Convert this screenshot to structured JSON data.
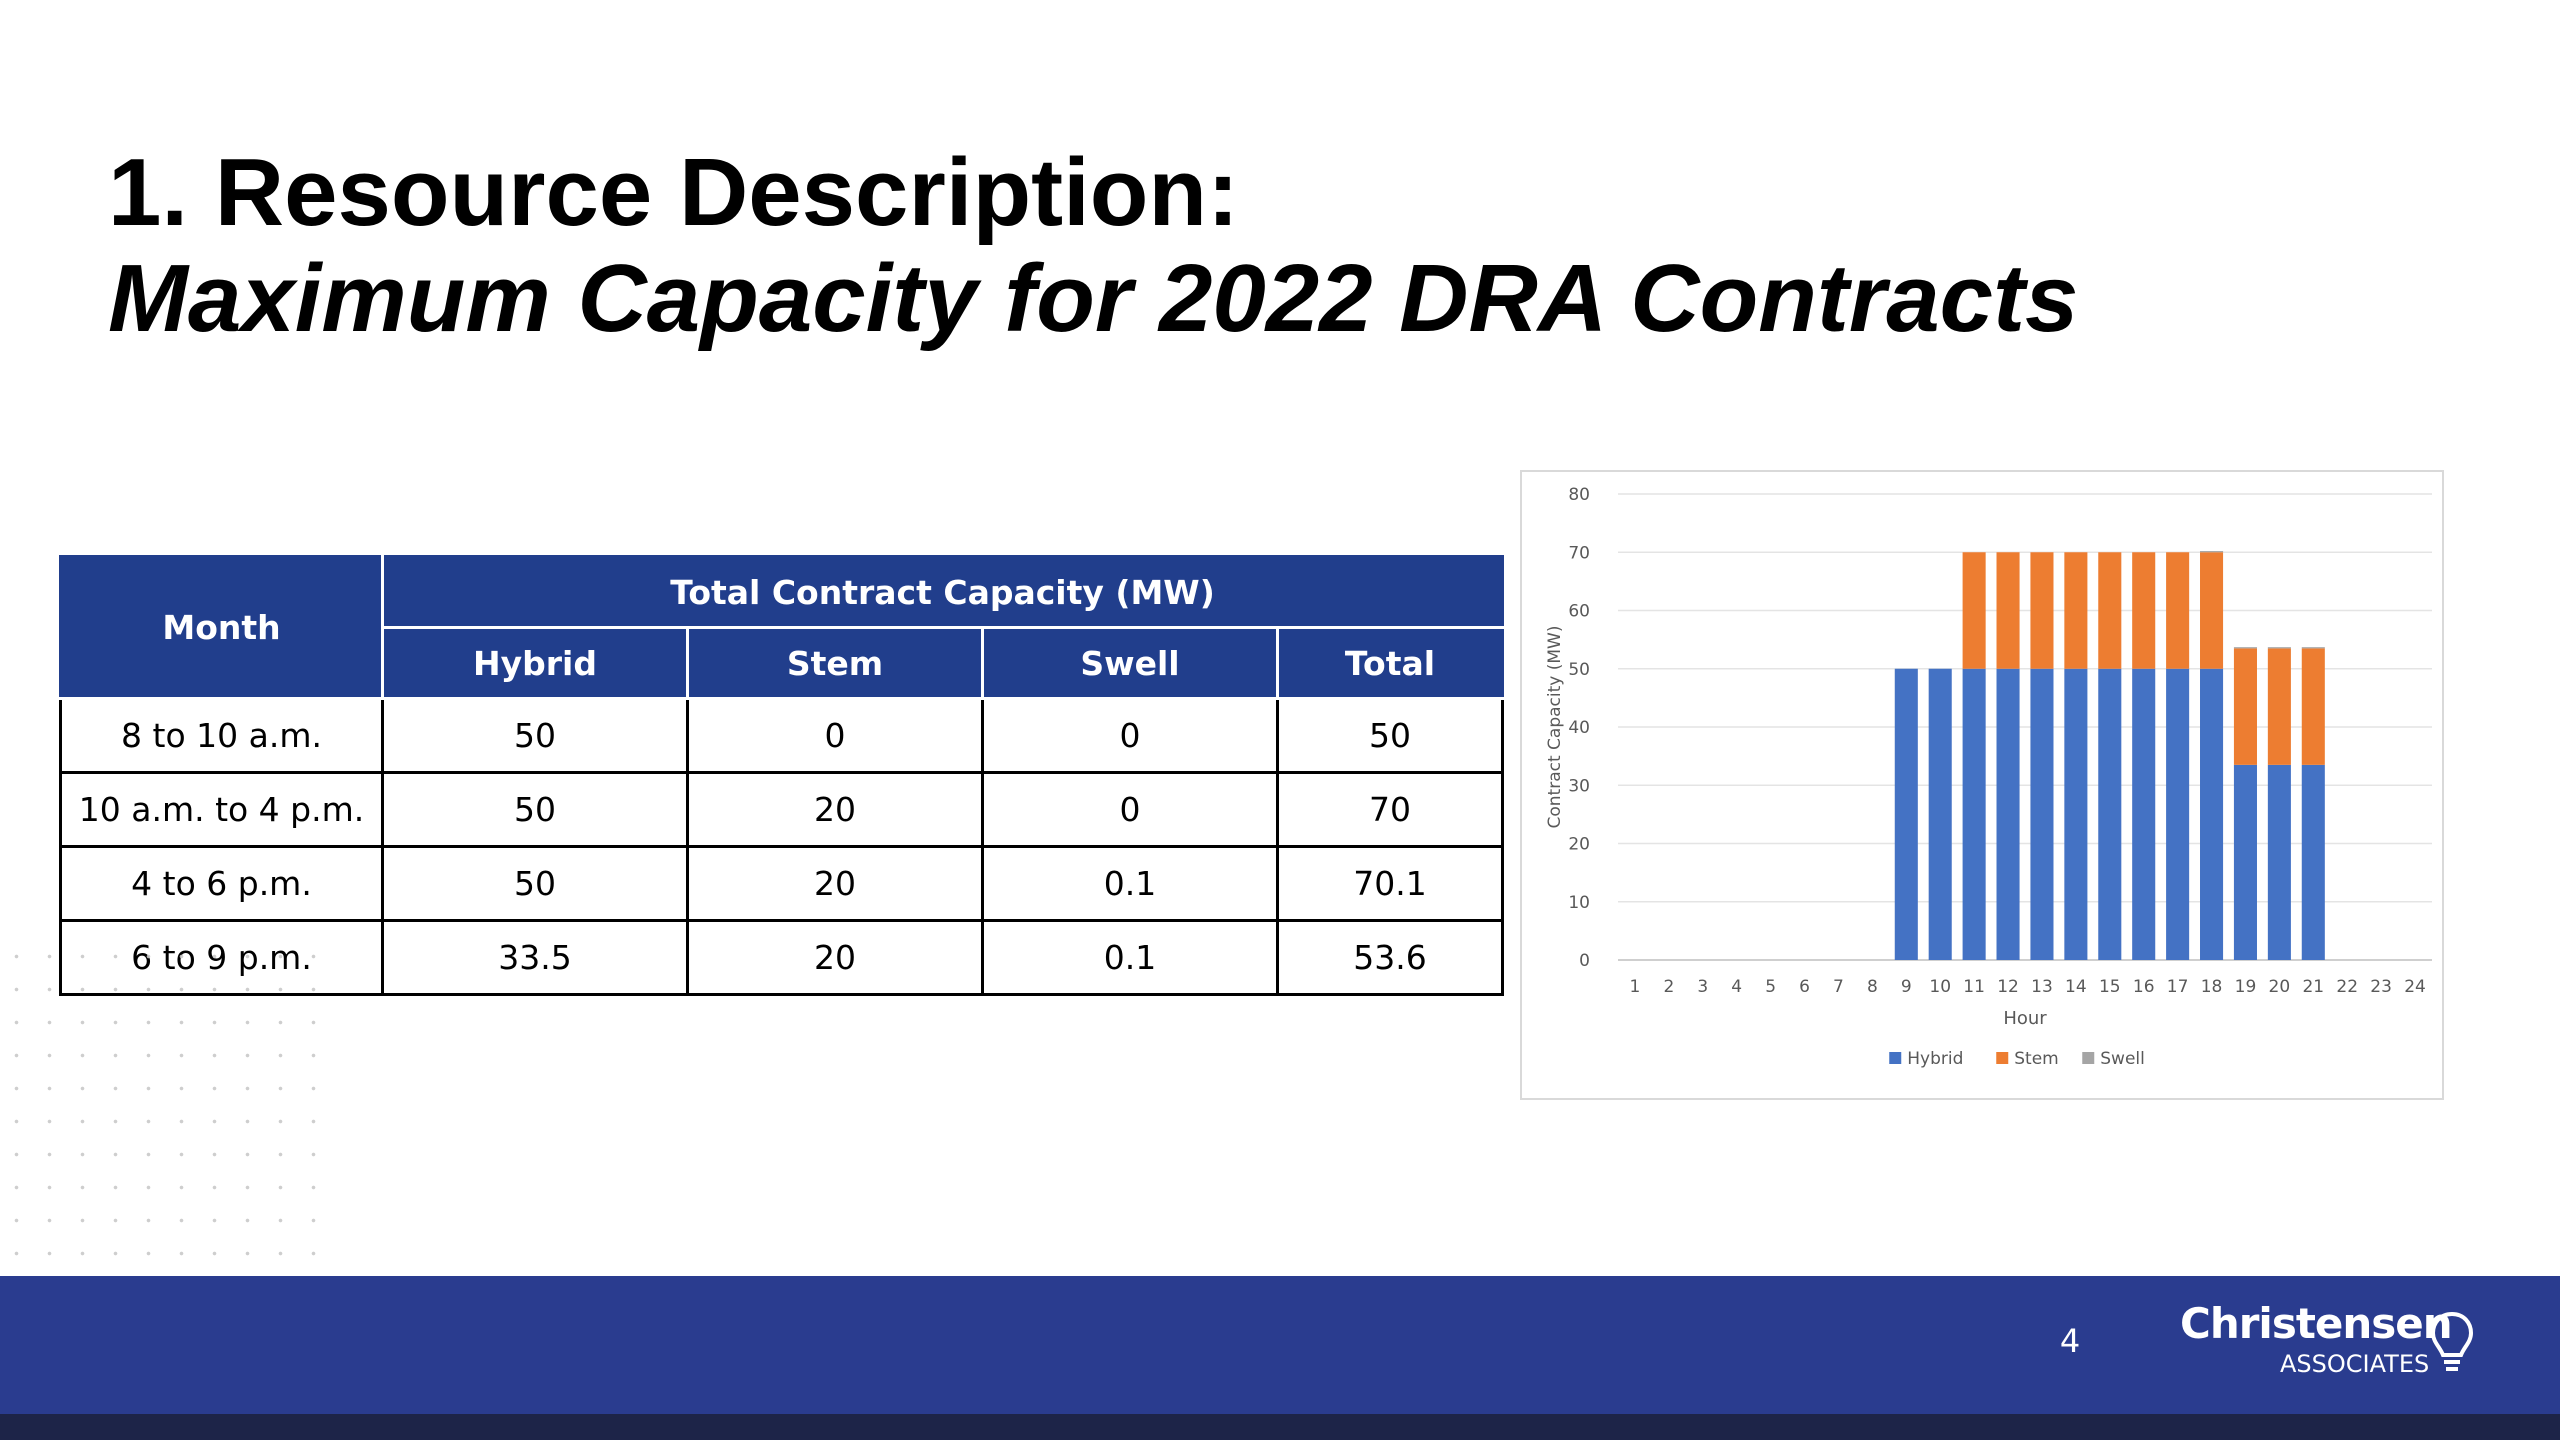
{
  "slide": {
    "title_line1": "1. Resource Description:",
    "title_line2": "Maximum Capacity for 2022 DRA Contracts",
    "page_number": "4"
  },
  "table": {
    "month_header": "Month",
    "group_header": "Total Contract Capacity (MW)",
    "columns": [
      "Hybrid",
      "Stem",
      "Swell",
      "Total"
    ],
    "rows": [
      {
        "month": "8 to 10 a.m.",
        "hybrid": "50",
        "stem": "0",
        "swell": "0",
        "total": "50"
      },
      {
        "month": "10 a.m. to 4 p.m.",
        "hybrid": "50",
        "stem": "20",
        "swell": "0",
        "total": "70"
      },
      {
        "month": "4 to 6 p.m.",
        "hybrid": "50",
        "stem": "20",
        "swell": "0.1",
        "total": "70.1"
      },
      {
        "month": "6 to 9 p.m.",
        "hybrid": "33.5",
        "stem": "20",
        "swell": "0.1",
        "total": "53.6"
      }
    ]
  },
  "logo": {
    "name": "Christensen",
    "sub": "ASSOCIATES"
  },
  "colors": {
    "header_blue": "#213e8c",
    "footer_blue": "#2a3c8f",
    "hybrid": "#4472c4",
    "stem": "#ed7d31",
    "swell": "#a5a5a5"
  },
  "chart_data": {
    "type": "bar",
    "stacked": true,
    "xlabel": "Hour",
    "ylabel": "Contract Capacity (MW)",
    "ylim": [
      0,
      80
    ],
    "yticks": [
      0,
      10,
      20,
      30,
      40,
      50,
      60,
      70,
      80
    ],
    "grid": true,
    "legend_position": "bottom",
    "categories": [
      "1",
      "2",
      "3",
      "4",
      "5",
      "6",
      "7",
      "8",
      "9",
      "10",
      "11",
      "12",
      "13",
      "14",
      "15",
      "16",
      "17",
      "18",
      "19",
      "20",
      "21",
      "22",
      "23",
      "24"
    ],
    "series": [
      {
        "name": "Hybrid",
        "color": "#4472c4",
        "values": [
          0,
          0,
          0,
          0,
          0,
          0,
          0,
          0,
          50,
          50,
          50,
          50,
          50,
          50,
          50,
          50,
          50,
          50,
          33.5,
          33.5,
          33.5,
          0,
          0,
          0
        ]
      },
      {
        "name": "Stem",
        "color": "#ed7d31",
        "values": [
          0,
          0,
          0,
          0,
          0,
          0,
          0,
          0,
          0,
          0,
          20,
          20,
          20,
          20,
          20,
          20,
          20,
          20,
          20,
          20,
          20,
          0,
          0,
          0
        ]
      },
      {
        "name": "Swell",
        "color": "#a5a5a5",
        "values": [
          0,
          0,
          0,
          0,
          0,
          0,
          0,
          0,
          0,
          0,
          0,
          0,
          0,
          0,
          0,
          0,
          0,
          0.1,
          0.1,
          0.1,
          0.1,
          0,
          0,
          0
        ]
      }
    ]
  }
}
